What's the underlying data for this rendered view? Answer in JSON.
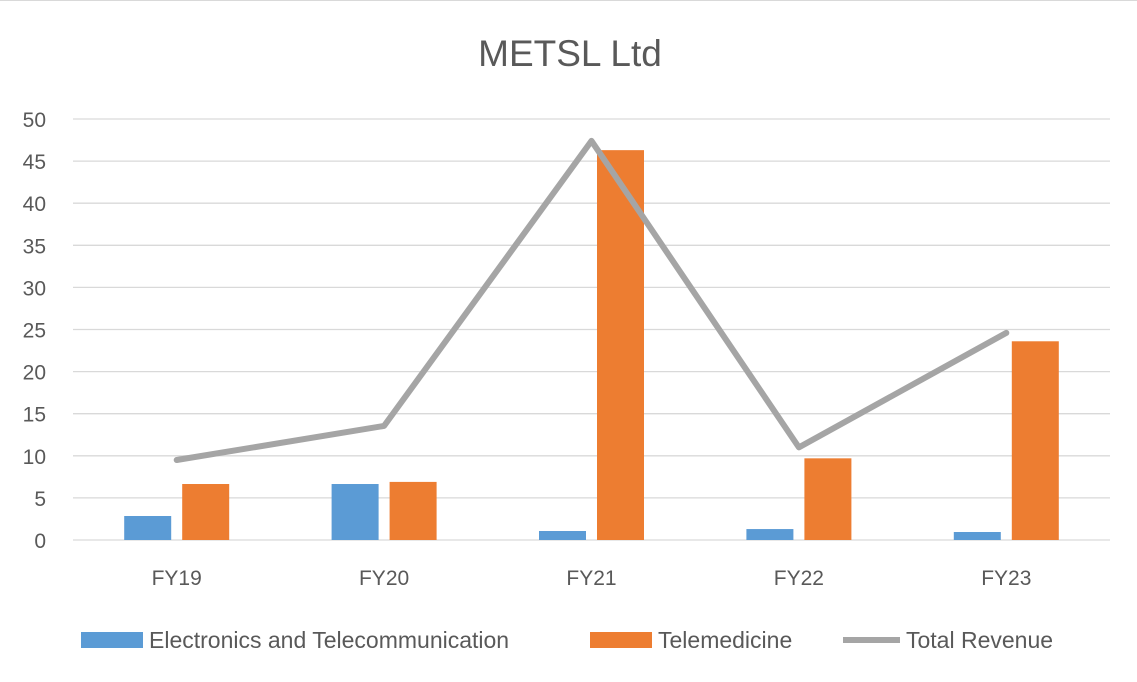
{
  "chart_data": {
    "type": "bar",
    "title": "METSL Ltd",
    "xlabel": "",
    "ylabel": "",
    "categories": [
      "FY19",
      "FY20",
      "FY21",
      "FY22",
      "FY23"
    ],
    "ylim": [
      0,
      50
    ],
    "yticks": [
      0,
      5,
      10,
      15,
      20,
      25,
      30,
      35,
      40,
      45,
      50
    ],
    "grid": true,
    "legend_position": "bottom",
    "series": [
      {
        "name": "Electronics and Telecommunication",
        "kind": "bar",
        "color": "#5b9bd5",
        "values": [
          2.85,
          6.65,
          1.07,
          1.3,
          0.95
        ]
      },
      {
        "name": "Telemedicine",
        "kind": "bar",
        "color": "#ed7d31",
        "values": [
          6.65,
          6.9,
          46.3,
          9.7,
          23.6
        ]
      },
      {
        "name": "Total Revenue",
        "kind": "line",
        "color": "#a5a5a5",
        "values": [
          9.5,
          13.55,
          47.4,
          11.0,
          24.6
        ]
      }
    ]
  }
}
